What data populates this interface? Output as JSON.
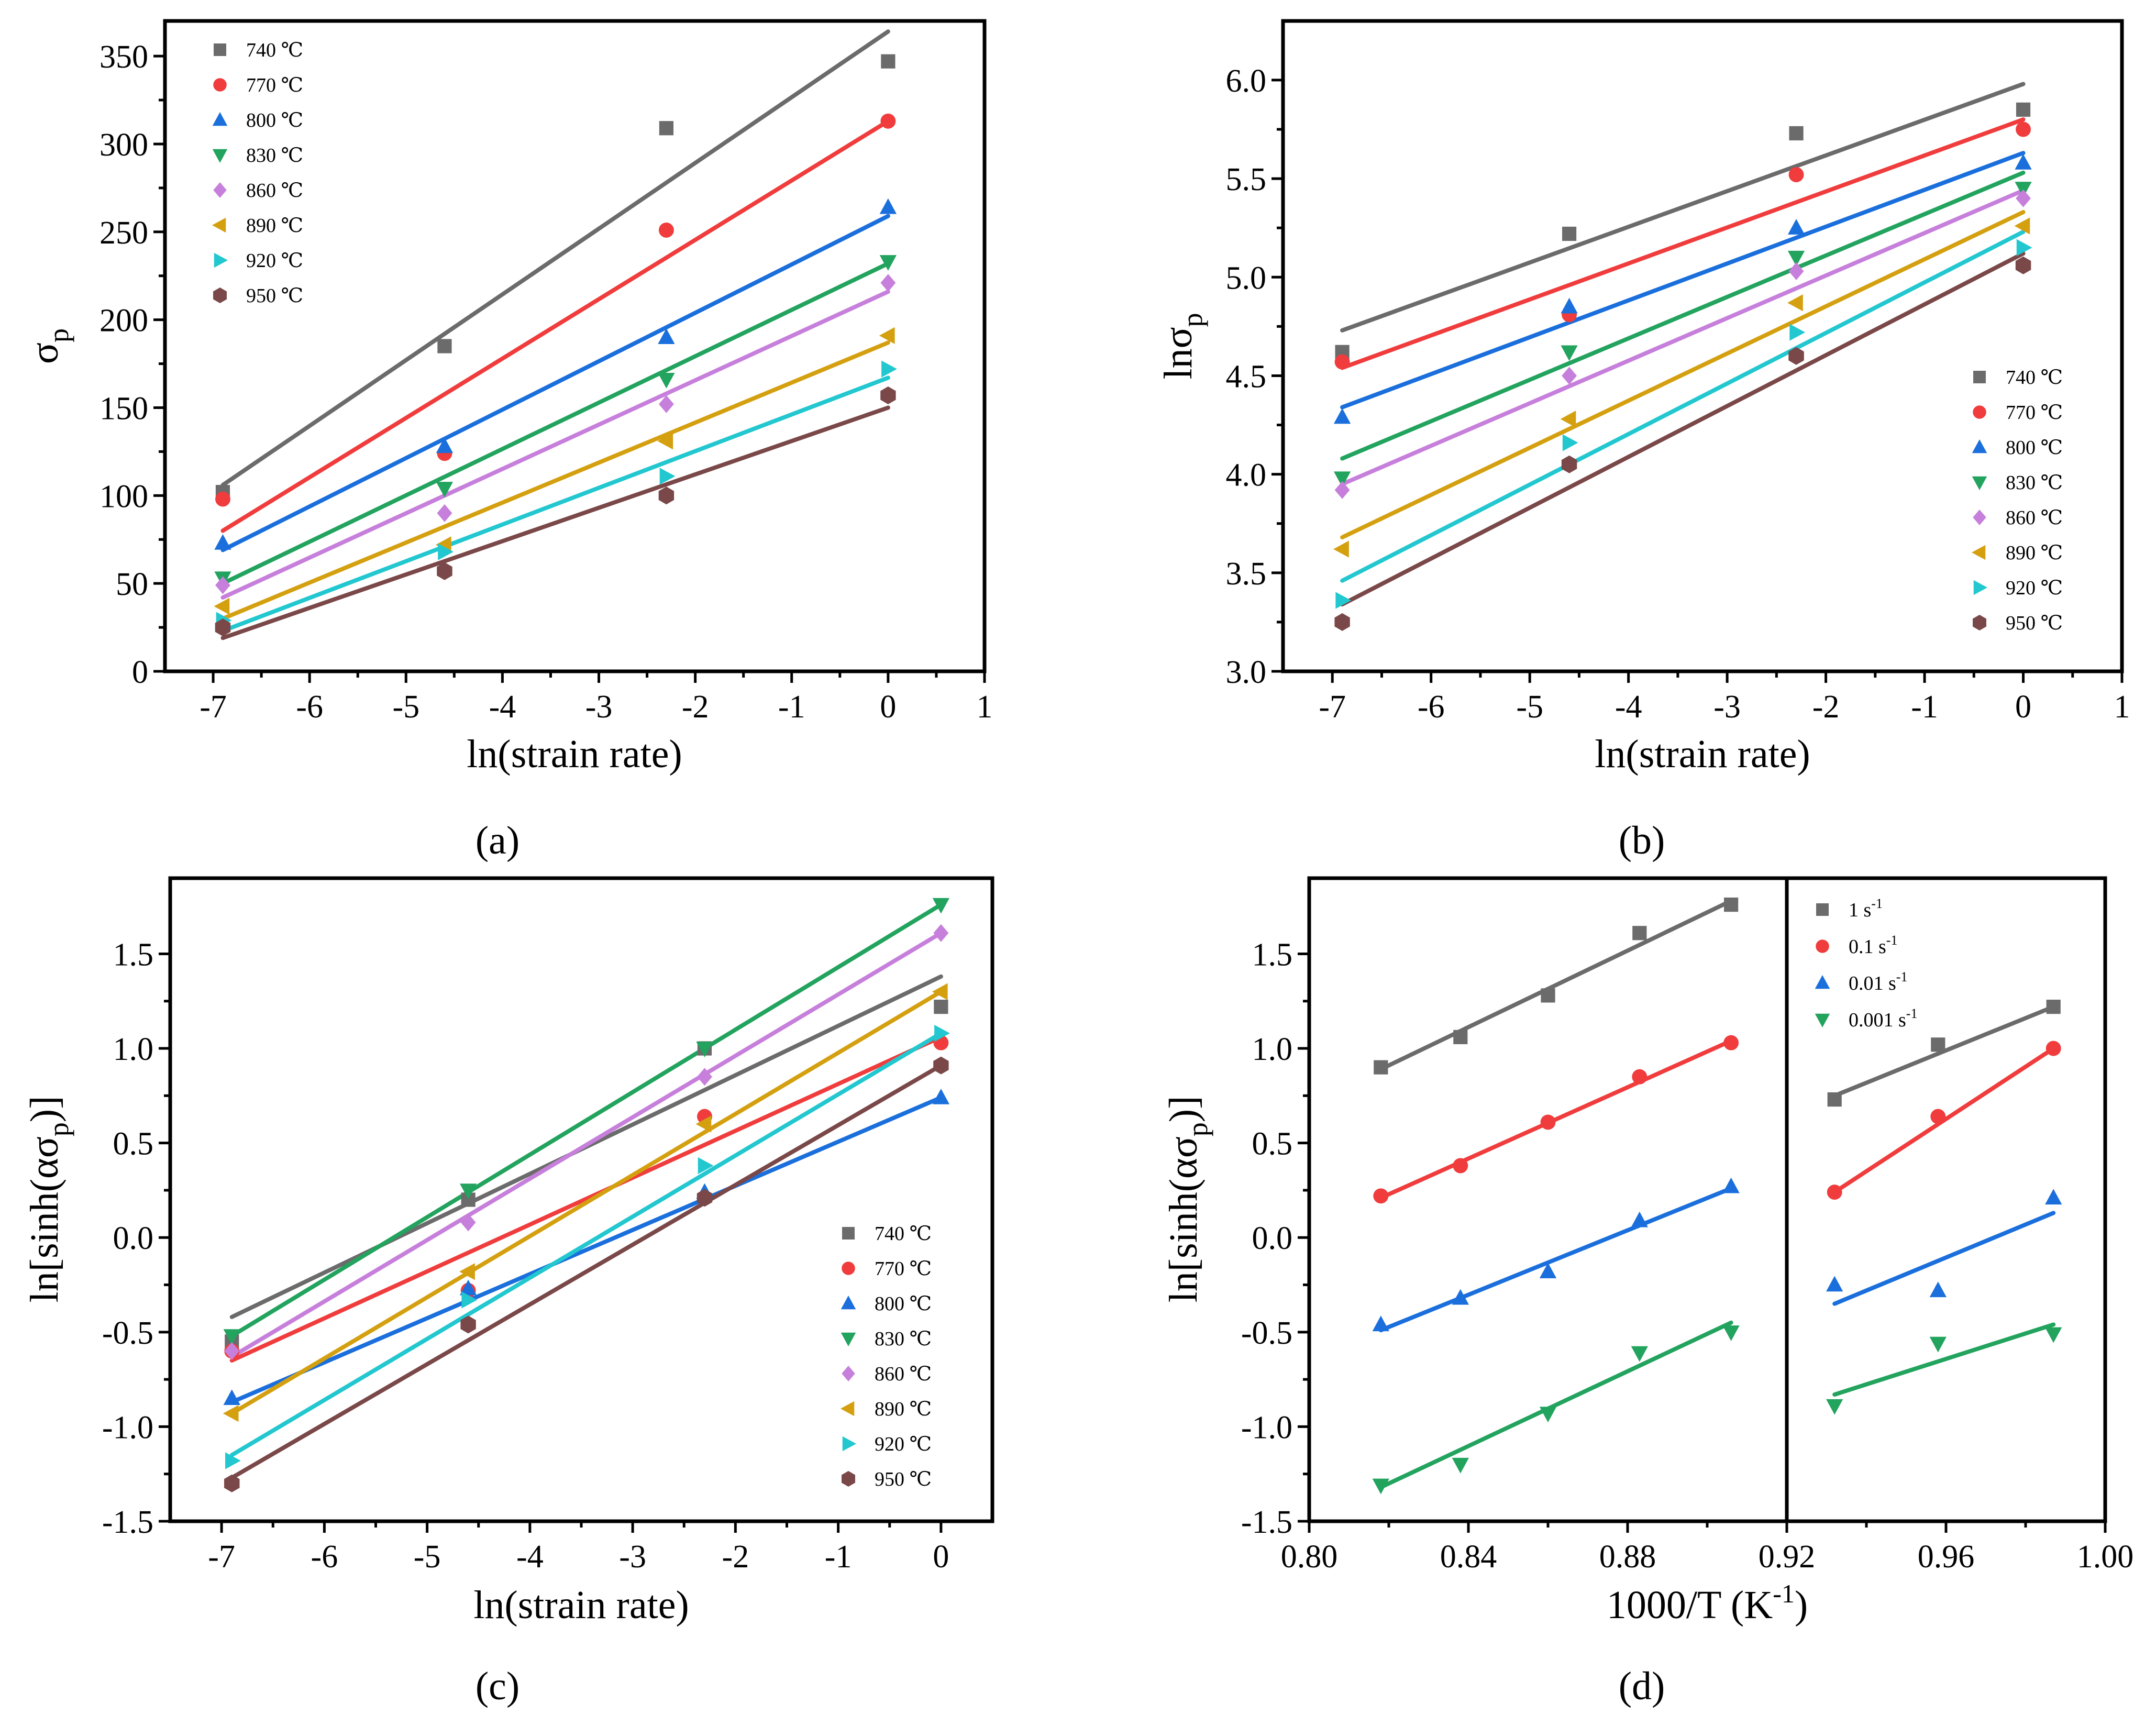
{
  "colors": {
    "740": "#6b6b6b",
    "770": "#f03c3c",
    "800": "#1a6fdc",
    "830": "#22a35e",
    "860": "#c77fdc",
    "890": "#d4a010",
    "920": "#22c7cf",
    "950": "#7a4848"
  },
  "chart_data": [
    {
      "id": "a",
      "type": "scatter",
      "caption": "(a)",
      "xlabel": "ln(strain rate)",
      "ylabel": "σp",
      "xlim": [
        -7.5,
        1
      ],
      "ylim": [
        0,
        370
      ],
      "xticks": [
        -7,
        -6,
        -5,
        -4,
        -3,
        -2,
        -1,
        0,
        1
      ],
      "yticks": [
        0,
        50,
        100,
        150,
        200,
        250,
        300,
        350
      ],
      "xtick_labels": [
        "-7",
        "-6",
        "-5",
        "-4",
        "-3",
        "-2",
        "-1",
        "0",
        "1"
      ],
      "ytick_labels": [
        "0",
        "50",
        "100",
        "150",
        "200",
        "250",
        "300",
        "350"
      ],
      "legend_position": "top-left",
      "x": [
        -6.9,
        -4.6,
        -2.3,
        0
      ],
      "series": [
        {
          "name": "740 ℃",
          "key": "740",
          "marker": "square",
          "values": [
            102,
            185,
            309,
            347
          ],
          "fit": [
            [
              -6.9,
              106
            ],
            [
              0,
              364
            ]
          ]
        },
        {
          "name": "770 ℃",
          "key": "770",
          "marker": "circle",
          "values": [
            98,
            124,
            251,
            313
          ],
          "fit": [
            [
              -6.9,
              80
            ],
            [
              0,
              313
            ]
          ]
        },
        {
          "name": "800 ℃",
          "key": "800",
          "marker": "triangle-up",
          "values": [
            73,
            128,
            190,
            264
          ],
          "fit": [
            [
              -6.9,
              69
            ],
            [
              0,
              259
            ]
          ]
        },
        {
          "name": "830 ℃",
          "key": "830",
          "marker": "triangle-down",
          "values": [
            53,
            104,
            166,
            233
          ],
          "fit": [
            [
              -6.9,
              50
            ],
            [
              0,
              232
            ]
          ]
        },
        {
          "name": "860 ℃",
          "key": "860",
          "marker": "diamond",
          "values": [
            49,
            90,
            152,
            221
          ],
          "fit": [
            [
              -6.9,
              42
            ],
            [
              0,
              216
            ]
          ]
        },
        {
          "name": "890 ℃",
          "key": "890",
          "marker": "triangle-left",
          "values": [
            37,
            72,
            131,
            191
          ],
          "fit": [
            [
              -6.9,
              30
            ],
            [
              0,
              187
            ]
          ]
        },
        {
          "name": "920 ℃",
          "key": "920",
          "marker": "triangle-right",
          "values": [
            29,
            68,
            111,
            172
          ],
          "fit": [
            [
              -6.9,
              23
            ],
            [
              0,
              167
            ]
          ]
        },
        {
          "name": "950 ℃",
          "key": "950",
          "marker": "hexagon",
          "values": [
            25,
            57,
            100,
            157
          ],
          "fit": [
            [
              -6.9,
              19
            ],
            [
              0,
              150
            ]
          ]
        }
      ]
    },
    {
      "id": "b",
      "type": "scatter",
      "caption": "(b)",
      "xlabel": "ln(strain rate)",
      "ylabel": "lnσp",
      "xlim": [
        -7.5,
        1
      ],
      "ylim": [
        3.0,
        6.3
      ],
      "xticks": [
        -7,
        -6,
        -5,
        -4,
        -3,
        -2,
        -1,
        0,
        1
      ],
      "yticks": [
        3.0,
        3.5,
        4.0,
        4.5,
        5.0,
        5.5,
        6.0
      ],
      "xtick_labels": [
        "-7",
        "-6",
        "-5",
        "-4",
        "-3",
        "-2",
        "-1",
        "0",
        "1"
      ],
      "ytick_labels": [
        "3.0",
        "3.5",
        "4.0",
        "4.5",
        "5.0",
        "5.5",
        "6.0"
      ],
      "legend_position": "bottom-right",
      "x": [
        -6.9,
        -4.6,
        -2.3,
        0
      ],
      "series": [
        {
          "name": "740 ℃",
          "key": "740",
          "marker": "square",
          "values": [
            4.62,
            5.22,
            5.73,
            5.85
          ],
          "fit": [
            [
              -6.9,
              4.73
            ],
            [
              0,
              5.98
            ]
          ]
        },
        {
          "name": "770 ℃",
          "key": "770",
          "marker": "circle",
          "values": [
            4.57,
            4.81,
            5.52,
            5.75
          ],
          "fit": [
            [
              -6.9,
              4.54
            ],
            [
              0,
              5.8
            ]
          ]
        },
        {
          "name": "800 ℃",
          "key": "800",
          "marker": "triangle-up",
          "values": [
            4.29,
            4.85,
            5.25,
            5.58
          ],
          "fit": [
            [
              -6.9,
              4.34
            ],
            [
              0,
              5.63
            ]
          ]
        },
        {
          "name": "830 ℃",
          "key": "830",
          "marker": "triangle-down",
          "values": [
            3.98,
            4.62,
            5.1,
            5.45
          ],
          "fit": [
            [
              -6.9,
              4.08
            ],
            [
              0,
              5.53
            ]
          ]
        },
        {
          "name": "860 ℃",
          "key": "860",
          "marker": "diamond",
          "values": [
            3.92,
            4.5,
            5.03,
            5.4
          ],
          "fit": [
            [
              -6.9,
              3.95
            ],
            [
              0,
              5.44
            ]
          ]
        },
        {
          "name": "890 ℃",
          "key": "890",
          "marker": "triangle-left",
          "values": [
            3.62,
            4.28,
            4.87,
            5.26
          ],
          "fit": [
            [
              -6.9,
              3.68
            ],
            [
              0,
              5.33
            ]
          ]
        },
        {
          "name": "920 ℃",
          "key": "920",
          "marker": "triangle-right",
          "values": [
            3.36,
            4.16,
            4.72,
            5.15
          ],
          "fit": [
            [
              -6.9,
              3.46
            ],
            [
              0,
              5.23
            ]
          ]
        },
        {
          "name": "950 ℃",
          "key": "950",
          "marker": "hexagon",
          "values": [
            3.25,
            4.05,
            4.6,
            5.06
          ],
          "fit": [
            [
              -6.9,
              3.34
            ],
            [
              0,
              5.12
            ]
          ]
        }
      ]
    },
    {
      "id": "c",
      "type": "scatter",
      "caption": "(c)",
      "xlabel": "ln(strain rate)",
      "ylabel": "ln[sinh(ασp)]",
      "xlim": [
        -7.5,
        0.5
      ],
      "ylim": [
        -1.5,
        1.9
      ],
      "xticks": [
        -7,
        -6,
        -5,
        -4,
        -3,
        -2,
        -1,
        0
      ],
      "yticks": [
        -1.5,
        -1.0,
        -0.5,
        0.0,
        0.5,
        1.0,
        1.5
      ],
      "xtick_labels": [
        "-7",
        "-6",
        "-5",
        "-4",
        "-3",
        "-2",
        "-1",
        "0"
      ],
      "ytick_labels": [
        "-1.5",
        "-1.0",
        "-0.5",
        "0.0",
        "0.5",
        "1.0",
        "1.5"
      ],
      "legend_position": "bottom-right",
      "x": [
        -6.9,
        -4.6,
        -2.3,
        0
      ],
      "series": [
        {
          "name": "740 ℃",
          "key": "740",
          "marker": "square",
          "values": [
            -0.55,
            0.2,
            1.0,
            1.22
          ],
          "fit": [
            [
              -6.9,
              -0.42
            ],
            [
              0,
              1.38
            ]
          ]
        },
        {
          "name": "770 ℃",
          "key": "770",
          "marker": "circle",
          "values": [
            -0.6,
            -0.28,
            0.64,
            1.03
          ],
          "fit": [
            [
              -6.9,
              -0.65
            ],
            [
              0,
              1.06
            ]
          ]
        },
        {
          "name": "800 ℃",
          "key": "800",
          "marker": "triangle-up",
          "values": [
            -0.85,
            -0.27,
            0.24,
            0.74
          ],
          "fit": [
            [
              -6.9,
              -0.87
            ],
            [
              0,
              0.74
            ]
          ]
        },
        {
          "name": "830 ℃",
          "key": "830",
          "marker": "triangle-down",
          "values": [
            -0.52,
            0.25,
            1.0,
            1.76
          ],
          "fit": [
            [
              -6.9,
              -0.52
            ],
            [
              0,
              1.76
            ]
          ]
        },
        {
          "name": "860 ℃",
          "key": "860",
          "marker": "diamond",
          "values": [
            -0.6,
            0.08,
            0.85,
            1.61
          ],
          "fit": [
            [
              -6.9,
              -0.63
            ],
            [
              0,
              1.61
            ]
          ]
        },
        {
          "name": "890 ℃",
          "key": "890",
          "marker": "triangle-left",
          "values": [
            -0.93,
            -0.18,
            0.6,
            1.3
          ],
          "fit": [
            [
              -6.9,
              -0.93
            ],
            [
              0,
              1.3
            ]
          ]
        },
        {
          "name": "920 ℃",
          "key": "920",
          "marker": "triangle-right",
          "values": [
            -1.18,
            -0.33,
            0.38,
            1.08
          ],
          "fit": [
            [
              -6.9,
              -1.15
            ],
            [
              0,
              1.08
            ]
          ]
        },
        {
          "name": "950 ℃",
          "key": "950",
          "marker": "hexagon",
          "values": [
            -1.3,
            -0.46,
            0.21,
            0.91
          ],
          "fit": [
            [
              -6.9,
              -1.27
            ],
            [
              0,
              0.91
            ]
          ]
        }
      ]
    },
    {
      "id": "d",
      "type": "scatter",
      "caption": "(d)",
      "xlabel": "1000/T (K⁻¹)",
      "ylabel": "ln[sinh(ασp)]",
      "xlim": [
        0.8,
        1.0
      ],
      "ylim": [
        -1.5,
        1.9
      ],
      "xticks": [
        0.8,
        0.84,
        0.88,
        0.92,
        0.96,
        1.0
      ],
      "yticks": [
        -1.5,
        -1.0,
        -0.5,
        0.0,
        0.5,
        1.0,
        1.5
      ],
      "xtick_labels": [
        "0.80",
        "0.84",
        "0.88",
        "0.92",
        "0.96",
        "1.00"
      ],
      "ytick_labels": [
        "-1.5",
        "-1.0",
        "-0.5",
        "0.0",
        "0.5",
        "1.0",
        "1.5"
      ],
      "divider_x": 0.92,
      "legend_position": "top-right",
      "series": [
        {
          "name": "1 s",
          "sup": "-1",
          "key": "740",
          "marker": "square",
          "groups": [
            {
              "x": [
                0.818,
                0.838,
                0.86,
                0.883,
                0.906
              ],
              "values": [
                0.9,
                1.06,
                1.28,
                1.61,
                1.76
              ],
              "fit": [
                [
                  0.818,
                  0.89
                ],
                [
                  0.906,
                  1.78
                ]
              ]
            },
            {
              "x": [
                0.932,
                0.958,
                0.987
              ],
              "values": [
                0.73,
                1.02,
                1.22
              ],
              "fit": [
                [
                  0.932,
                  0.75
                ],
                [
                  0.987,
                  1.22
                ]
              ]
            }
          ]
        },
        {
          "name": "0.1 s",
          "sup": "-1",
          "key": "770",
          "marker": "circle",
          "groups": [
            {
              "x": [
                0.818,
                0.838,
                0.86,
                0.883,
                0.906
              ],
              "values": [
                0.22,
                0.38,
                0.61,
                0.85,
                1.03
              ],
              "fit": [
                [
                  0.818,
                  0.21
                ],
                [
                  0.906,
                  1.04
                ]
              ]
            },
            {
              "x": [
                0.932,
                0.958,
                0.987
              ],
              "values": [
                0.24,
                0.64,
                1.0
              ],
              "fit": [
                [
                  0.932,
                  0.24
                ],
                [
                  0.987,
                  1.0
                ]
              ]
            }
          ]
        },
        {
          "name": "0.01 s",
          "sup": "-1",
          "key": "800",
          "marker": "triangle-up",
          "groups": [
            {
              "x": [
                0.818,
                0.838,
                0.86,
                0.883,
                0.906
              ],
              "values": [
                -0.46,
                -0.32,
                -0.18,
                0.09,
                0.27
              ],
              "fit": [
                [
                  0.818,
                  -0.49
                ],
                [
                  0.906,
                  0.26
                ]
              ]
            },
            {
              "x": [
                0.932,
                0.958,
                0.987
              ],
              "values": [
                -0.25,
                -0.28,
                0.21
              ],
              "fit": [
                [
                  0.932,
                  -0.35
                ],
                [
                  0.987,
                  0.13
                ]
              ]
            }
          ]
        },
        {
          "name": "0.001 s",
          "sup": "-1",
          "key": "830",
          "marker": "triangle-down",
          "groups": [
            {
              "x": [
                0.818,
                0.838,
                0.86,
                0.883,
                0.906
              ],
              "values": [
                -1.31,
                -1.2,
                -0.93,
                -0.61,
                -0.5
              ],
              "fit": [
                [
                  0.818,
                  -1.32
                ],
                [
                  0.906,
                  -0.45
                ]
              ]
            },
            {
              "x": [
                0.932,
                0.958,
                0.987
              ],
              "values": [
                -0.89,
                -0.56,
                -0.51
              ],
              "fit": [
                [
                  0.932,
                  -0.83
                ],
                [
                  0.987,
                  -0.46
                ]
              ]
            }
          ]
        }
      ]
    }
  ]
}
